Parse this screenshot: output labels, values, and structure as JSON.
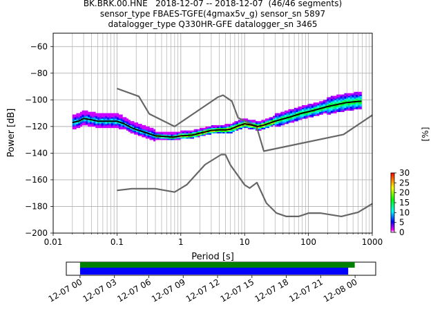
{
  "chart_data": {
    "type": "heatmap",
    "title_lines": [
      "BK.BRK.00.HNE   2018-12-07 -- 2018-12-07  (46/46 segments)",
      "sensor_type FBAES-TGFE(4gmax5v_g) sensor_sn 5897",
      "datalogger_type Q330HR-GFE datalogger_sn 3465"
    ],
    "xlabel": "Period [s]",
    "ylabel": "Power [dB]",
    "x_scale": "log",
    "xlim": [
      0.01,
      1000
    ],
    "ylim": [
      -200,
      -50
    ],
    "x_ticks": [
      {
        "value": 0.01,
        "label": "0.01"
      },
      {
        "value": 0.1,
        "label": "0.1"
      },
      {
        "value": 1,
        "label": "1"
      },
      {
        "value": 10,
        "label": "10"
      },
      {
        "value": 100,
        "label": "100"
      },
      {
        "value": 1000,
        "label": "1000"
      }
    ],
    "y_ticks": [
      -60,
      -80,
      -100,
      -120,
      -140,
      -160,
      -180,
      -200
    ],
    "grid": true,
    "colorbar": {
      "label": "[%]",
      "range": [
        0,
        30
      ],
      "ticks": [
        0,
        5,
        10,
        15,
        20,
        25,
        30
      ]
    },
    "series": [
      {
        "name": "NHNM",
        "color": "#666666",
        "points": [
          [
            0.1,
            -91.5
          ],
          [
            0.22,
            -97.4
          ],
          [
            0.32,
            -110.5
          ],
          [
            0.8,
            -120
          ],
          [
            3.8,
            -98
          ],
          [
            4.6,
            -96.5
          ],
          [
            6.3,
            -101
          ],
          [
            7.9,
            -113.5
          ],
          [
            15.4,
            -120
          ],
          [
            20,
            -138.5
          ],
          [
            354.8,
            -126
          ],
          [
            1000,
            -111.5
          ]
        ]
      },
      {
        "name": "NLNM",
        "color": "#666666",
        "points": [
          [
            0.1,
            -168
          ],
          [
            0.17,
            -166.7
          ],
          [
            0.4,
            -166.7
          ],
          [
            0.8,
            -169.2
          ],
          [
            1.24,
            -163.7
          ],
          [
            2.4,
            -148.6
          ],
          [
            4.3,
            -141.1
          ],
          [
            5,
            -141.1
          ],
          [
            6,
            -149
          ],
          [
            10,
            -163.8
          ],
          [
            12,
            -166.2
          ],
          [
            15.6,
            -162.1
          ],
          [
            21.9,
            -177.5
          ],
          [
            31.6,
            -185
          ],
          [
            45,
            -187.5
          ],
          [
            70,
            -187.5
          ],
          [
            101,
            -185
          ],
          [
            154,
            -185
          ],
          [
            328,
            -187.5
          ],
          [
            600,
            -184.4
          ],
          [
            1000,
            -178
          ]
        ]
      },
      {
        "name": "mode",
        "color": "#000000",
        "points": [
          [
            0.02,
            -117
          ],
          [
            0.025,
            -116
          ],
          [
            0.03,
            -114
          ],
          [
            0.04,
            -115
          ],
          [
            0.05,
            -116
          ],
          [
            0.07,
            -116
          ],
          [
            0.1,
            -116
          ],
          [
            0.13,
            -118
          ],
          [
            0.17,
            -121
          ],
          [
            0.22,
            -123
          ],
          [
            0.3,
            -125
          ],
          [
            0.4,
            -127
          ],
          [
            0.55,
            -127.5
          ],
          [
            0.75,
            -128
          ],
          [
            1,
            -127
          ],
          [
            1.5,
            -126.5
          ],
          [
            2,
            -125
          ],
          [
            3,
            -123
          ],
          [
            4,
            -122.5
          ],
          [
            5,
            -122.5
          ],
          [
            6,
            -122
          ],
          [
            8,
            -119.5
          ],
          [
            10,
            -118
          ],
          [
            13,
            -119
          ],
          [
            16,
            -120
          ],
          [
            20,
            -119
          ],
          [
            30,
            -116
          ],
          [
            50,
            -113
          ],
          [
            80,
            -110
          ],
          [
            120,
            -108
          ],
          [
            200,
            -105
          ],
          [
            400,
            -102
          ],
          [
            680,
            -101
          ]
        ]
      }
    ],
    "availability": {
      "x_ticks": [
        "12-07 00",
        "12-07 03",
        "12-07 06",
        "12-07 09",
        "12-07 12",
        "12-07 15",
        "12-07 18",
        "12-07 21",
        "12-08 00"
      ],
      "x_range_hours": [
        -1.2,
        25.8
      ],
      "data_hours": [
        0,
        23.4
      ],
      "gaps_hours": [
        0,
        23.97
      ],
      "data_color": "#0000ff",
      "gaps_color": "#008000"
    }
  }
}
